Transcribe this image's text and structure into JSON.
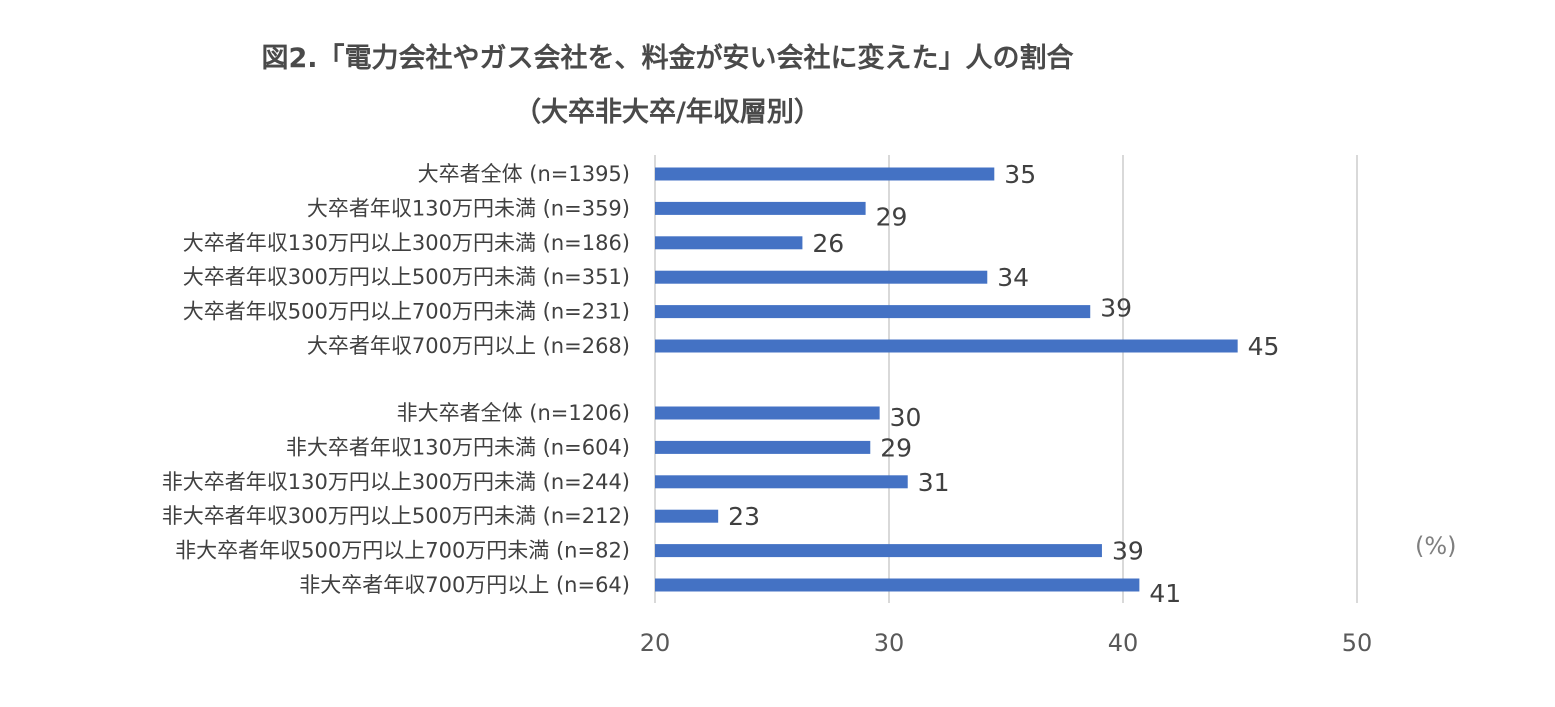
{
  "chart_data": {
    "type": "bar",
    "orientation": "horizontal",
    "title": "図2.「電力会社やガス会社を、料金が安い会社に変えた」人の割合",
    "subtitle": "（大卒非大卒/年収層別）",
    "unit_label": "(%)",
    "xlim": [
      20,
      50
    ],
    "xticks": [
      "20",
      "30",
      "40",
      "50"
    ],
    "grid": true,
    "bar_color": "#4472c4",
    "grid_color": "#d9d9d9",
    "groups": [
      {
        "categories": [
          "大卒者全体 (n=1395)",
          "大卒者年収130万円未満 (n=359)",
          "大卒者年収130万円以上300万円未満 (n=186)",
          "大卒者年収300万円以上500万円未満 (n=351)",
          "大卒者年収500万円以上700万円未満 (n=231)",
          "大卒者年収700万円以上 (n=268)"
        ],
        "values": [
          34.5,
          29.0,
          26.3,
          34.2,
          38.6,
          44.9
        ],
        "labels": [
          "35",
          "29",
          "26",
          "34",
          "39",
          "45"
        ]
      },
      {
        "categories": [
          "非大卒者全体 (n=1206)",
          "非大卒者年収130万円未満 (n=604)",
          "非大卒者年収130万円以上300万円未満 (n=244)",
          "非大卒者年収300万円以上500万円未満 (n=212)",
          "非大卒者年収500万円以上700万円未満 (n=82)",
          "非大卒者年収700万円以上 (n=64)"
        ],
        "values": [
          29.6,
          29.2,
          30.8,
          22.7,
          39.1,
          40.7
        ],
        "labels": [
          "30",
          "29",
          "31",
          "23",
          "39",
          "41"
        ]
      }
    ]
  }
}
